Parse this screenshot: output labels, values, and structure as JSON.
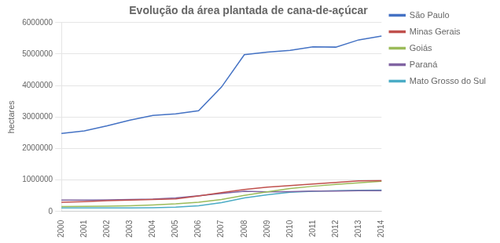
{
  "chart_data": {
    "type": "line",
    "title": "Evolução da área plantada de cana-de-açúcar",
    "ylabel": "hectares",
    "categories": [
      "2000",
      "2001",
      "2002",
      "2003",
      "2004",
      "2005",
      "2006",
      "2007",
      "2008",
      "2009",
      "2010",
      "2011",
      "2012",
      "2013",
      "2014"
    ],
    "series": [
      {
        "name": "São Paulo",
        "color": "#4472C4",
        "values": [
          2480000,
          2560000,
          2720000,
          2900000,
          3050000,
          3100000,
          3200000,
          3950000,
          4980000,
          5060000,
          5120000,
          5230000,
          5220000,
          5450000,
          5570000
        ]
      },
      {
        "name": "Minas Gerais",
        "color": "#C0504D",
        "values": [
          290000,
          310000,
          340000,
          360000,
          380000,
          400000,
          490000,
          600000,
          700000,
          770000,
          820000,
          870000,
          920000,
          970000,
          980000
        ]
      },
      {
        "name": "Goiás",
        "color": "#9BBB59",
        "values": [
          155000,
          160000,
          170000,
          180000,
          205000,
          240000,
          295000,
          380000,
          510000,
          620000,
          730000,
          800000,
          860000,
          910000,
          960000
        ]
      },
      {
        "name": "Paraná",
        "color": "#8064A2",
        "values": [
          360000,
          360000,
          370000,
          380000,
          390000,
          430000,
          500000,
          570000,
          640000,
          620000,
          630000,
          650000,
          650000,
          660000,
          660000
        ]
      },
      {
        "name": "Mato Grosso do Sul",
        "color": "#4BACC6",
        "values": [
          110000,
          110000,
          110000,
          115000,
          120000,
          140000,
          180000,
          280000,
          430000,
          530000,
          610000,
          640000,
          660000,
          670000,
          680000
        ]
      }
    ],
    "ylim": [
      0,
      6000000
    ],
    "yticks": [
      0,
      1000000,
      2000000,
      3000000,
      4000000,
      5000000,
      6000000
    ],
    "grid": true,
    "legend": "right"
  }
}
